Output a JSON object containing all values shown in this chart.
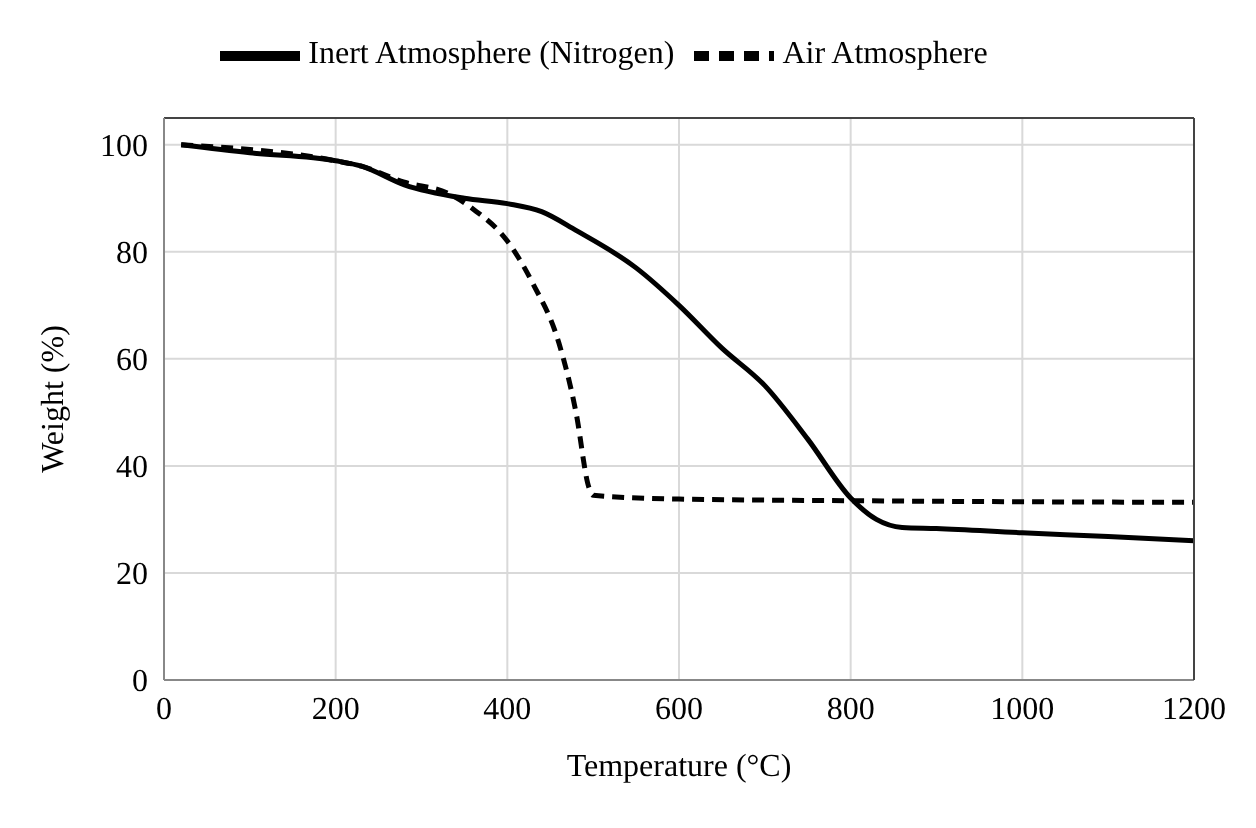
{
  "chart_data": {
    "type": "line",
    "xlabel": "Temperature (°C)",
    "ylabel": "Weight (%)",
    "xlim": [
      0,
      1200
    ],
    "xticks": [
      0,
      200,
      400,
      600,
      800,
      1000,
      1200
    ],
    "ylim": [
      0,
      105
    ],
    "yticks": [
      0,
      20,
      40,
      60,
      80,
      100
    ],
    "grid": true,
    "legend": "top",
    "marker": "none",
    "series": [
      {
        "name": "Inert Atmosphere (Nitrogen)",
        "color": "#000000",
        "line_style": "solid",
        "x": [
          20,
          100,
          200,
          230,
          280,
          350,
          400,
          440,
          480,
          550,
          600,
          650,
          700,
          750,
          800,
          830,
          860,
          900,
          1000,
          1100,
          1200
        ],
        "values": [
          100,
          98.5,
          97,
          96,
          92.5,
          90,
          89,
          87.5,
          84,
          77,
          70,
          62,
          55,
          45,
          34,
          30,
          28.5,
          28.3,
          27.5,
          26.8,
          26
        ]
      },
      {
        "name": "Air Atmosphere",
        "color": "#000000",
        "line_style": "dashed",
        "x": [
          20,
          200,
          230,
          280,
          330,
          360,
          400,
          430,
          460,
          480,
          495,
          500,
          600,
          800,
          1000,
          1200
        ],
        "values": [
          100,
          97,
          96,
          93,
          91,
          88,
          82,
          74,
          63,
          50,
          36,
          34.5,
          33.8,
          33.5,
          33.3,
          33.2
        ]
      }
    ]
  }
}
